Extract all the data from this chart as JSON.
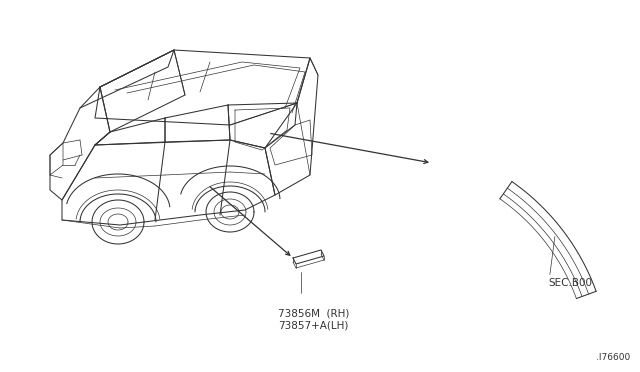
{
  "bg_color": "#ffffff",
  "line_color": "#333333",
  "part_label1": "73856M  (RH)",
  "part_label2": "73857+A(LH)",
  "sec_label": "SEC.B00",
  "diagram_ref": ".I76600",
  "font_size_labels": 7.5,
  "font_size_ref": 6.5
}
